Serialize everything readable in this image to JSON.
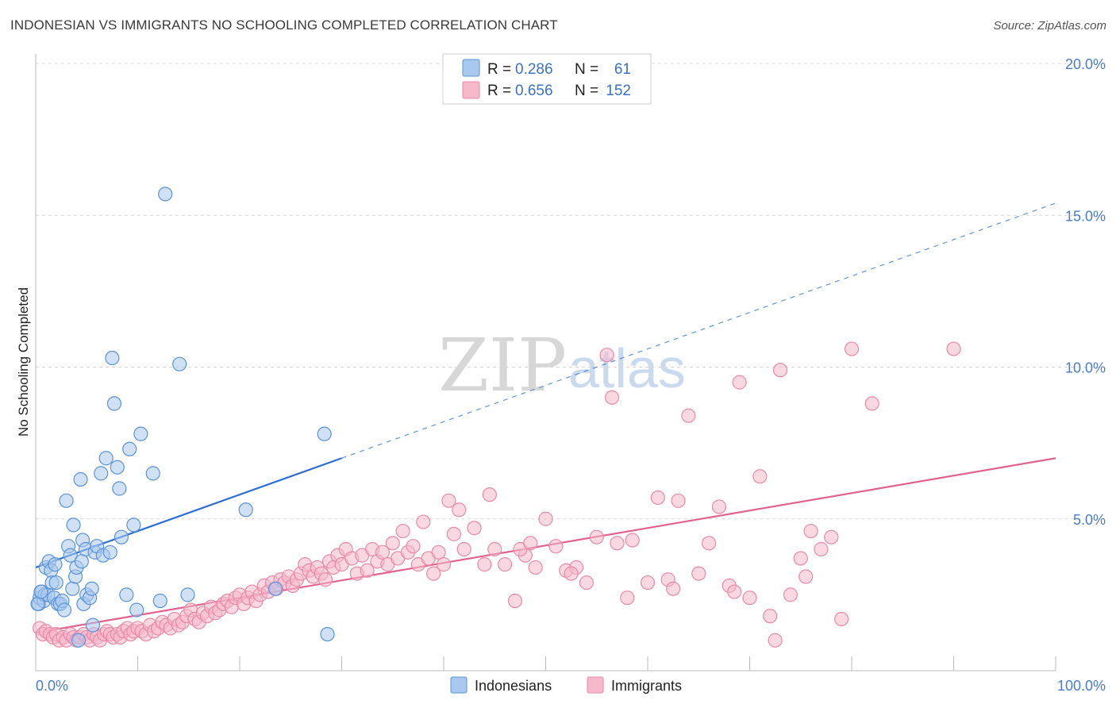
{
  "title": "INDONESIAN VS IMMIGRANTS NO SCHOOLING COMPLETED CORRELATION CHART",
  "source": "Source: ZipAtlas.com",
  "watermark": {
    "zip": "ZIP",
    "atlas": "atlas"
  },
  "colors": {
    "indonesians_fill": "#a9c8ef",
    "indonesians_stroke": "#5b93d6",
    "indonesians_line": "#2f6fcf",
    "immigrants_fill": "#f6b8cb",
    "immigrants_stroke": "#e98aa8",
    "immigrants_line": "#e0628f",
    "tick_label": "#4a7cc7",
    "grid": "#d8d8d8"
  },
  "legend": {
    "rows": [
      {
        "r_label": "R =",
        "r_value": "0.286",
        "n_label": "N =",
        "n_value": "61"
      },
      {
        "r_label": "R =",
        "r_value": "0.656",
        "n_label": "N =",
        "n_value": "152"
      }
    ]
  },
  "bottom_legend": [
    "Indonesians",
    "Immigrants"
  ],
  "chart_data": {
    "type": "scatter",
    "xlabel": "",
    "ylabel": "No Schooling Completed",
    "xlim": [
      0,
      100
    ],
    "ylim": [
      0,
      20
    ],
    "x_tick_labels": [
      "0.0%",
      "100.0%"
    ],
    "y_ticks": [
      5,
      10,
      15,
      20
    ],
    "y_tick_labels": [
      "5.0%",
      "10.0%",
      "15.0%",
      "20.0%"
    ],
    "grid": true,
    "series": [
      {
        "name": "Indonesians",
        "trend": {
          "x0": 0,
          "y0": 3.4,
          "x1": 30,
          "y1": 7.0,
          "extend_to_x": 100,
          "extend_to_y": 15.4
        },
        "points": [
          [
            0.3,
            2.2
          ],
          [
            0.4,
            2.4
          ],
          [
            0.6,
            2.6
          ],
          [
            0.8,
            2.3
          ],
          [
            0.9,
            2.5
          ],
          [
            1.0,
            3.4
          ],
          [
            1.2,
            2.5
          ],
          [
            1.3,
            3.6
          ],
          [
            1.5,
            3.3
          ],
          [
            1.6,
            2.9
          ],
          [
            1.8,
            2.4
          ],
          [
            1.9,
            3.5
          ],
          [
            2.0,
            2.9
          ],
          [
            2.2,
            2.2
          ],
          [
            2.4,
            2.2
          ],
          [
            2.6,
            2.3
          ],
          [
            2.8,
            2.0
          ],
          [
            3.0,
            5.6
          ],
          [
            3.2,
            4.1
          ],
          [
            3.4,
            3.8
          ],
          [
            3.6,
            2.7
          ],
          [
            3.7,
            4.8
          ],
          [
            3.9,
            3.1
          ],
          [
            4.0,
            3.4
          ],
          [
            4.2,
            1.0
          ],
          [
            4.4,
            6.3
          ],
          [
            4.5,
            3.6
          ],
          [
            4.6,
            4.3
          ],
          [
            4.7,
            2.2
          ],
          [
            4.9,
            4.0
          ],
          [
            5.0,
            2.5
          ],
          [
            5.3,
            2.4
          ],
          [
            5.5,
            2.7
          ],
          [
            5.6,
            1.5
          ],
          [
            5.8,
            3.9
          ],
          [
            6.0,
            4.1
          ],
          [
            6.4,
            6.5
          ],
          [
            6.6,
            3.8
          ],
          [
            6.9,
            7.0
          ],
          [
            7.3,
            3.9
          ],
          [
            7.5,
            10.3
          ],
          [
            7.7,
            8.8
          ],
          [
            8.0,
            6.7
          ],
          [
            8.2,
            6.0
          ],
          [
            8.4,
            4.4
          ],
          [
            8.9,
            2.5
          ],
          [
            9.2,
            7.3
          ],
          [
            9.6,
            4.8
          ],
          [
            9.9,
            2.0
          ],
          [
            10.3,
            7.8
          ],
          [
            11.5,
            6.5
          ],
          [
            12.2,
            2.3
          ],
          [
            12.7,
            15.7
          ],
          [
            14.1,
            10.1
          ],
          [
            14.9,
            2.5
          ],
          [
            20.6,
            5.3
          ],
          [
            23.5,
            2.7
          ],
          [
            28.3,
            7.8
          ],
          [
            28.6,
            1.2
          ],
          [
            0.2,
            2.2
          ],
          [
            0.5,
            2.6
          ]
        ]
      },
      {
        "name": "Immigrants",
        "trend": {
          "x0": 0,
          "y0": 1.25,
          "x1": 100,
          "y1": 7.0
        },
        "points": [
          [
            0.4,
            1.4
          ],
          [
            0.7,
            1.2
          ],
          [
            1.0,
            1.3
          ],
          [
            1.4,
            1.2
          ],
          [
            1.7,
            1.1
          ],
          [
            2.0,
            1.2
          ],
          [
            2.3,
            1.0
          ],
          [
            2.7,
            1.1
          ],
          [
            3.0,
            1.0
          ],
          [
            3.4,
            1.2
          ],
          [
            3.7,
            1.1
          ],
          [
            4.0,
            1.0
          ],
          [
            4.3,
            1.1
          ],
          [
            4.7,
            1.2
          ],
          [
            5.0,
            1.1
          ],
          [
            5.3,
            1.0
          ],
          [
            5.7,
            1.2
          ],
          [
            6.0,
            1.1
          ],
          [
            6.3,
            1.0
          ],
          [
            6.7,
            1.2
          ],
          [
            7.0,
            1.3
          ],
          [
            7.3,
            1.2
          ],
          [
            7.6,
            1.1
          ],
          [
            8.0,
            1.2
          ],
          [
            8.3,
            1.1
          ],
          [
            8.6,
            1.3
          ],
          [
            9.0,
            1.4
          ],
          [
            9.3,
            1.2
          ],
          [
            9.6,
            1.3
          ],
          [
            10.0,
            1.4
          ],
          [
            10.4,
            1.3
          ],
          [
            10.8,
            1.2
          ],
          [
            11.2,
            1.5
          ],
          [
            11.6,
            1.3
          ],
          [
            12.0,
            1.4
          ],
          [
            12.4,
            1.6
          ],
          [
            12.8,
            1.5
          ],
          [
            13.2,
            1.4
          ],
          [
            13.6,
            1.7
          ],
          [
            14.0,
            1.5
          ],
          [
            14.4,
            1.6
          ],
          [
            14.8,
            1.8
          ],
          [
            15.2,
            2.0
          ],
          [
            15.6,
            1.7
          ],
          [
            16.0,
            1.6
          ],
          [
            16.4,
            1.9
          ],
          [
            16.8,
            1.8
          ],
          [
            17.2,
            2.1
          ],
          [
            17.6,
            1.9
          ],
          [
            18.0,
            2.0
          ],
          [
            18.4,
            2.2
          ],
          [
            18.8,
            2.3
          ],
          [
            19.2,
            2.1
          ],
          [
            19.6,
            2.4
          ],
          [
            20.0,
            2.5
          ],
          [
            20.4,
            2.2
          ],
          [
            20.8,
            2.4
          ],
          [
            21.2,
            2.6
          ],
          [
            21.6,
            2.3
          ],
          [
            22.0,
            2.5
          ],
          [
            22.4,
            2.8
          ],
          [
            22.8,
            2.6
          ],
          [
            23.2,
            2.9
          ],
          [
            23.6,
            2.7
          ],
          [
            24.0,
            3.0
          ],
          [
            24.4,
            2.9
          ],
          [
            24.8,
            3.1
          ],
          [
            25.2,
            2.8
          ],
          [
            25.6,
            3.0
          ],
          [
            26.0,
            3.2
          ],
          [
            26.4,
            3.5
          ],
          [
            26.8,
            3.3
          ],
          [
            27.2,
            3.1
          ],
          [
            27.6,
            3.4
          ],
          [
            28.0,
            3.2
          ],
          [
            28.4,
            3.0
          ],
          [
            28.8,
            3.6
          ],
          [
            29.2,
            3.4
          ],
          [
            29.6,
            3.8
          ],
          [
            30.0,
            3.5
          ],
          [
            30.4,
            4.0
          ],
          [
            31.0,
            3.7
          ],
          [
            31.5,
            3.2
          ],
          [
            32.0,
            3.8
          ],
          [
            32.5,
            3.3
          ],
          [
            33.0,
            4.0
          ],
          [
            33.5,
            3.6
          ],
          [
            34.0,
            3.9
          ],
          [
            34.5,
            3.5
          ],
          [
            35.0,
            4.2
          ],
          [
            35.5,
            3.7
          ],
          [
            36.0,
            4.6
          ],
          [
            36.5,
            3.9
          ],
          [
            37.0,
            4.1
          ],
          [
            37.5,
            3.5
          ],
          [
            38.0,
            4.9
          ],
          [
            38.5,
            3.7
          ],
          [
            39.0,
            3.2
          ],
          [
            39.5,
            3.9
          ],
          [
            40.0,
            3.5
          ],
          [
            40.5,
            5.6
          ],
          [
            41.0,
            4.5
          ],
          [
            41.5,
            5.3
          ],
          [
            42.0,
            4.0
          ],
          [
            43.0,
            4.7
          ],
          [
            44.0,
            3.5
          ],
          [
            44.5,
            5.8
          ],
          [
            45.0,
            4.0
          ],
          [
            46.0,
            3.5
          ],
          [
            47.0,
            2.3
          ],
          [
            48.0,
            3.8
          ],
          [
            49.0,
            3.4
          ],
          [
            50.0,
            5.0
          ],
          [
            51.0,
            4.1
          ],
          [
            52.0,
            3.3
          ],
          [
            53.0,
            3.4
          ],
          [
            54.0,
            2.9
          ],
          [
            55.0,
            4.4
          ],
          [
            56.0,
            10.4
          ],
          [
            56.5,
            9.0
          ],
          [
            57.0,
            4.2
          ],
          [
            58.0,
            2.4
          ],
          [
            60.0,
            2.9
          ],
          [
            61.0,
            5.7
          ],
          [
            62.0,
            3.0
          ],
          [
            63.0,
            5.6
          ],
          [
            64.0,
            8.4
          ],
          [
            65.0,
            3.2
          ],
          [
            66.0,
            4.2
          ],
          [
            67.0,
            5.4
          ],
          [
            68.0,
            2.8
          ],
          [
            69.0,
            9.5
          ],
          [
            70.0,
            2.4
          ],
          [
            71.0,
            6.4
          ],
          [
            72.0,
            1.8
          ],
          [
            73.0,
            9.9
          ],
          [
            74.0,
            2.5
          ],
          [
            75.0,
            3.7
          ],
          [
            76.0,
            4.6
          ],
          [
            77.0,
            4.0
          ],
          [
            78.0,
            4.4
          ],
          [
            79.0,
            1.7
          ],
          [
            80.0,
            10.6
          ],
          [
            82.0,
            8.8
          ],
          [
            90.0,
            10.6
          ],
          [
            47.5,
            4.0
          ],
          [
            52.5,
            3.2
          ],
          [
            58.5,
            4.3
          ],
          [
            62.5,
            2.7
          ],
          [
            68.5,
            2.6
          ],
          [
            72.5,
            1.0
          ],
          [
            75.5,
            3.1
          ],
          [
            48.5,
            4.2
          ]
        ]
      }
    ]
  }
}
